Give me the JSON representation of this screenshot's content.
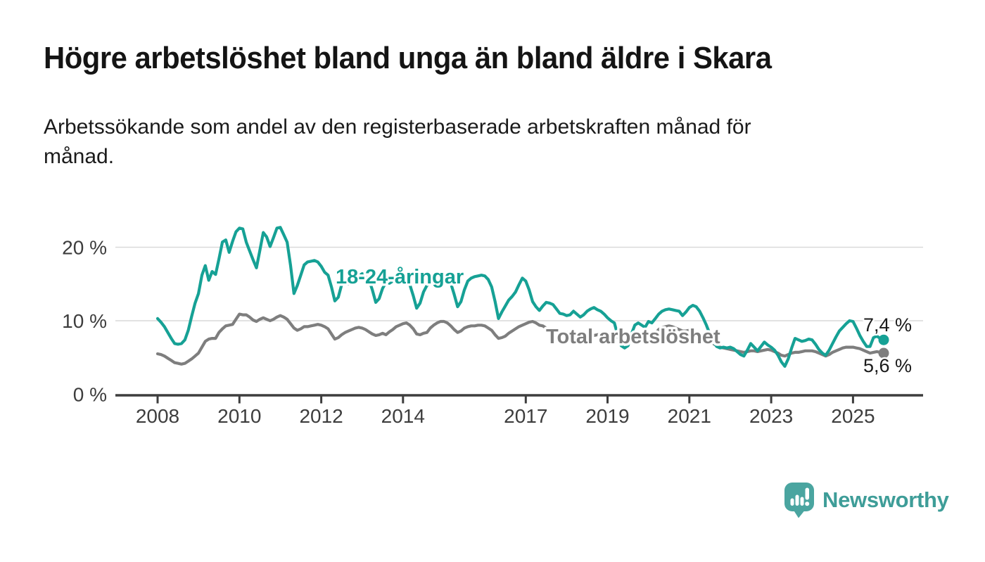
{
  "header": {
    "title": "Högre arbetslöshet bland unga än bland äldre i Skara",
    "subtitle": "Arbetssökande som andel av den registerbaserade arbetskraften månad för\nmånad."
  },
  "labels": {
    "young": "18-24-åringar",
    "total": "Total arbetslöshet",
    "end_young": "7,4 %",
    "end_total": "5,6 %"
  },
  "footer": {
    "brand": "Newsworthy"
  },
  "colors": {
    "young": "#16a195",
    "total": "#7e7e7e",
    "grid": "#d9d9d9",
    "axis": "#3d3d3d",
    "logo": "#4aa5a0",
    "wordmark": "#3e9d98"
  },
  "chart_data": {
    "type": "line",
    "title": "Högre arbetslöshet bland unga än bland äldre i Skara",
    "subtitle": "Arbetssökande som andel av den registerbaserade arbetskraften månad för månad.",
    "x_unit": "month",
    "x_start": "2008-01",
    "x_end": "2025-10",
    "grid": "horizontal",
    "legend": "inline-labels",
    "y_axis": {
      "ticks": [
        0,
        10,
        20
      ],
      "tick_labels": [
        "0 %",
        "10 %",
        "20 %"
      ],
      "ylim": [
        0,
        24
      ]
    },
    "x_axis": {
      "ticks": [
        2008,
        2010,
        2012,
        2014,
        2017,
        2019,
        2021,
        2023,
        2025
      ]
    },
    "series": [
      {
        "name": "Total arbetslöshet",
        "color": "#7e7e7e",
        "end_label": "5,6 %",
        "end_value": 5.6,
        "values": [
          5.5,
          5.4,
          5.2,
          4.9,
          4.6,
          4.3,
          4.2,
          4.1,
          4.2,
          4.5,
          4.8,
          5.2,
          5.6,
          6.4,
          7.2,
          7.5,
          7.6,
          7.6,
          8.4,
          8.9,
          9.3,
          9.4,
          9.5,
          10.2,
          10.9,
          10.8,
          10.8,
          10.5,
          10.1,
          9.9,
          10.2,
          10.4,
          10.2,
          10.0,
          10.2,
          10.5,
          10.7,
          10.5,
          10.2,
          9.6,
          9.0,
          8.7,
          8.9,
          9.2,
          9.2,
          9.3,
          9.4,
          9.5,
          9.4,
          9.2,
          8.9,
          8.2,
          7.5,
          7.7,
          8.1,
          8.4,
          8.6,
          8.8,
          9.0,
          9.1,
          9.0,
          8.8,
          8.5,
          8.2,
          8.0,
          8.1,
          8.3,
          8.1,
          8.5,
          8.8,
          9.2,
          9.4,
          9.6,
          9.7,
          9.4,
          8.9,
          8.2,
          8.1,
          8.3,
          8.4,
          9.0,
          9.4,
          9.7,
          9.9,
          9.9,
          9.7,
          9.3,
          8.8,
          8.4,
          8.6,
          9.0,
          9.2,
          9.3,
          9.3,
          9.4,
          9.4,
          9.3,
          9.0,
          8.7,
          8.1,
          7.6,
          7.7,
          7.9,
          8.3,
          8.6,
          8.9,
          9.2,
          9.4,
          9.6,
          9.8,
          9.9,
          9.7,
          9.4,
          9.3,
          9.0,
          8.6,
          8.3,
          8.2,
          8.3,
          8.4,
          8.4,
          8.3,
          8.2,
          8.0,
          7.8,
          7.7,
          7.8,
          7.9,
          8.0,
          8.1,
          8.2,
          8.3,
          8.3,
          8.2,
          8.0,
          7.7,
          7.4,
          7.3,
          7.5,
          7.6,
          7.6,
          7.7,
          7.7,
          7.8,
          7.9,
          8.0,
          8.3,
          8.8,
          9.1,
          9.2,
          9.3,
          9.2,
          9.0,
          8.8,
          8.6,
          8.6,
          8.7,
          8.6,
          8.4,
          8.1,
          7.8,
          7.5,
          7.2,
          6.9,
          6.6,
          6.4,
          6.3,
          6.2,
          6.1,
          6.0,
          5.9,
          5.8,
          5.7,
          5.8,
          5.9,
          5.9,
          5.8,
          5.9,
          6.0,
          6.1,
          6.0,
          5.8,
          5.6,
          5.3,
          5.2,
          5.4,
          5.6,
          5.7,
          5.7,
          5.8,
          5.9,
          5.9,
          5.9,
          5.8,
          5.6,
          5.4,
          5.2,
          5.4,
          5.7,
          5.9,
          6.1,
          6.3,
          6.4,
          6.4,
          6.4,
          6.3,
          6.2,
          6.0,
          5.8,
          5.6,
          5.7,
          5.8,
          5.7,
          5.6
        ]
      },
      {
        "name": "18-24-åringar",
        "color": "#16a195",
        "end_label": "7,4 %",
        "end_value": 7.4,
        "values": [
          10.3,
          9.8,
          9.2,
          8.4,
          7.6,
          6.9,
          6.8,
          6.9,
          7.4,
          8.7,
          10.6,
          12.4,
          13.7,
          16.2,
          17.5,
          15.5,
          16.7,
          16.3,
          18.4,
          20.7,
          21.0,
          19.3,
          20.8,
          22.1,
          22.6,
          22.5,
          20.7,
          19.5,
          18.3,
          17.2,
          19.6,
          22.0,
          21.4,
          20.1,
          21.3,
          22.6,
          22.7,
          21.7,
          20.7,
          17.5,
          13.7,
          14.8,
          16.2,
          17.6,
          18.0,
          18.1,
          18.2,
          18.0,
          17.4,
          16.6,
          16.2,
          14.6,
          12.7,
          13.2,
          14.9,
          15.1,
          15.0,
          15.3,
          15.8,
          16.1,
          16.4,
          16.2,
          15.6,
          14.2,
          12.5,
          13.0,
          14.4,
          15.2,
          15.1,
          15.4,
          15.9,
          16.2,
          16.3,
          15.8,
          14.9,
          13.4,
          11.7,
          12.4,
          13.9,
          14.8,
          15.1,
          15.3,
          15.7,
          16.0,
          16.2,
          15.9,
          15.1,
          13.6,
          11.9,
          12.6,
          14.2,
          15.4,
          15.8,
          16.0,
          16.1,
          16.2,
          16.1,
          15.6,
          14.6,
          12.6,
          10.3,
          11.2,
          12.0,
          12.8,
          13.3,
          13.9,
          14.9,
          15.8,
          15.4,
          14.2,
          12.6,
          11.9,
          11.4,
          12.0,
          12.5,
          12.4,
          12.2,
          11.6,
          11.0,
          10.9,
          10.7,
          10.8,
          11.3,
          10.9,
          10.5,
          10.8,
          11.3,
          11.6,
          11.8,
          11.5,
          11.3,
          10.9,
          10.4,
          10.0,
          9.7,
          8.0,
          6.6,
          6.3,
          6.6,
          8.2,
          9.4,
          9.7,
          9.4,
          9.1,
          9.9,
          9.7,
          10.3,
          10.9,
          11.3,
          11.5,
          11.6,
          11.5,
          11.4,
          11.3,
          10.7,
          11.2,
          11.8,
          12.1,
          11.9,
          11.3,
          10.4,
          9.4,
          8.2,
          7.2,
          6.5,
          6.3,
          6.4,
          6.3,
          6.4,
          6.2,
          5.8,
          5.4,
          5.2,
          6.0,
          6.9,
          6.4,
          5.9,
          6.5,
          7.1,
          6.7,
          6.4,
          6.0,
          5.3,
          4.4,
          3.8,
          4.8,
          6.3,
          7.6,
          7.4,
          7.2,
          7.3,
          7.5,
          7.4,
          6.8,
          6.1,
          5.6,
          5.3,
          6.0,
          6.9,
          7.8,
          8.6,
          9.1,
          9.6,
          10.0,
          9.9,
          9.0,
          8.0,
          7.2,
          6.5,
          6.5,
          7.7,
          7.9,
          7.6,
          7.4
        ]
      }
    ]
  }
}
